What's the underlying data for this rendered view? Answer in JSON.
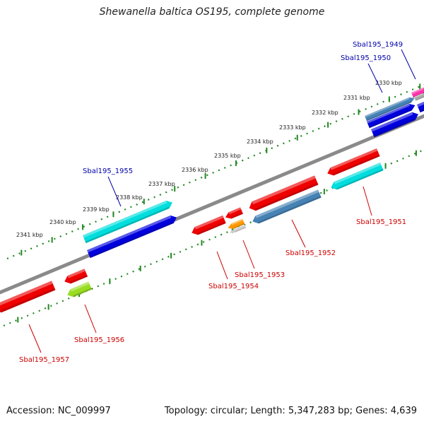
{
  "title": "Shewanella baltica OS195, complete genome",
  "footer": {
    "accession": "Accession: NC_009997",
    "summary": "Topology: circular; Length: 5,347,283 bp; Genes: 4,639"
  },
  "ticks": [
    "2330 kbp",
    "2331 kbp",
    "2332 kbp",
    "2333 kbp",
    "2334 kbp",
    "2335 kbp",
    "2336 kbp",
    "2337 kbp",
    "2338 kbp",
    "2339 kbp",
    "2340 kbp",
    "2341 kbp"
  ],
  "genes": {
    "forward": [
      {
        "name": "Sbal195_1949",
        "color": "#ff33aa"
      },
      {
        "name": "Sbal195_1950",
        "color": "#4682b4"
      },
      {
        "name": "Sbal195_1955",
        "color": "#00dddd"
      }
    ],
    "reverse": [
      {
        "name": "Sbal195_1951",
        "color": "#ee0000"
      },
      {
        "name": "Sbal195_1952",
        "color": "#ee0000"
      },
      {
        "name": "Sbal195_1953",
        "color": "#ee0000"
      },
      {
        "name": "Sbal195_1954",
        "color": "#ee0000"
      },
      {
        "name": "Sbal195_1956",
        "color": "#ee0000"
      },
      {
        "name": "Sbal195_1957",
        "color": "#ee0000"
      }
    ]
  },
  "colors": {
    "backbone": "#888888",
    "tick_dots": "#228822",
    "forward_label": "#0000aa",
    "reverse_label": "#cc0000",
    "red": "#ee0000",
    "blue": "#0000dd",
    "cyan": "#00dddd",
    "steelblue": "#4682b4",
    "orange": "#ff9900",
    "lime": "#99dd22",
    "magenta": "#ff33aa"
  }
}
